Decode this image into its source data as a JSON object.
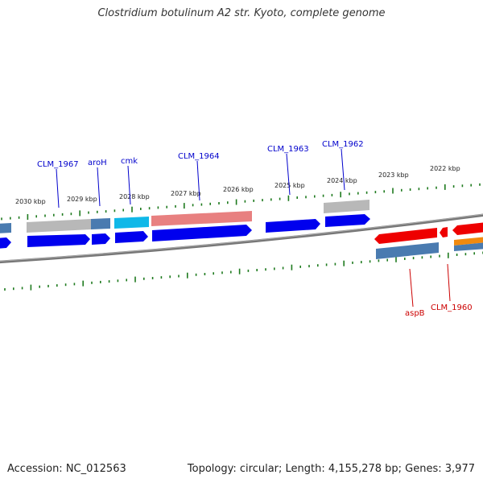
{
  "title": "Clostridium botulinum A2 str. Kyoto, complete genome",
  "footer": {
    "accession": "Accession: NC_012563",
    "topology": "Topology: circular; Length: 4,155,278 bp; Genes: 3,977"
  },
  "colors": {
    "backbone": "#777777",
    "tick": "#1e7a1e",
    "cds": "#0000ee",
    "cds_reverse": "#ee0000",
    "gene_label_forward": "#0000cc",
    "gene_label_reverse": "#cc0000",
    "grey_feature": "#b8b8b8",
    "steel_feature": "#4a7bb0",
    "cyan_feature": "#10b8e8",
    "pink_feature": "#e88080",
    "orange_feature": "#f08a10"
  },
  "scale_labels": [
    "2030 kbp",
    "2029 kbp",
    "2028 kbp",
    "2027 kbp",
    "2026 kbp",
    "2025 kbp",
    "2024 kbp",
    "2023 kbp",
    "2022 kbp"
  ],
  "gene_labels": {
    "forward": [
      "CLM_1967",
      "aroH",
      "cmk",
      "CLM_1964",
      "CLM_1963",
      "CLM_1962"
    ],
    "reverse": [
      "aspB",
      "CLM_1960"
    ]
  }
}
